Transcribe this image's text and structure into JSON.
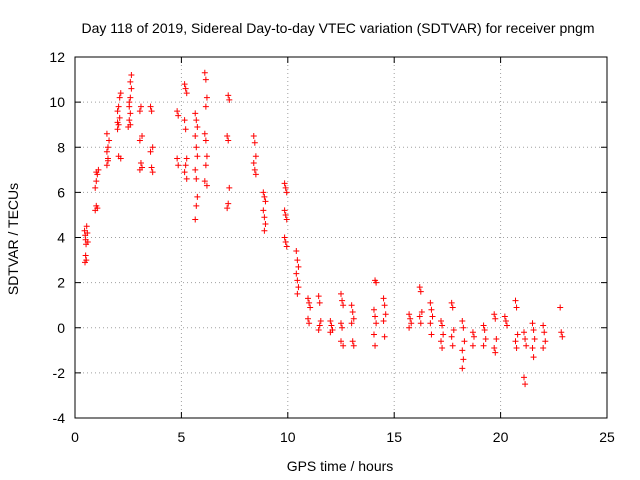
{
  "chart_data": {
    "type": "scatter",
    "title": "Day 118 of 2019, Sidereal Day-to-day VTEC variation (SDTVAR) for receiver pngm",
    "xlabel": "GPS time / hours",
    "ylabel": "SDTVAR / TECUs",
    "xlim": [
      0,
      25
    ],
    "ylim": [
      -4,
      12
    ],
    "xticks": [
      "0",
      "5",
      "10",
      "15",
      "20",
      "25"
    ],
    "yticks": [
      "-4",
      "-2",
      "0",
      "2",
      "4",
      "6",
      "8",
      "10",
      "12"
    ],
    "grid": true,
    "marker": "plus",
    "color": "#ff0000",
    "series": [
      {
        "name": "pngm",
        "points": [
          [
            0.45,
            4.3
          ],
          [
            0.48,
            4.1
          ],
          [
            0.5,
            3.9
          ],
          [
            0.52,
            3.7
          ],
          [
            0.5,
            3.2
          ],
          [
            0.47,
            2.9
          ],
          [
            0.55,
            4.5
          ],
          [
            0.58,
            4.2
          ],
          [
            0.6,
            3.8
          ],
          [
            0.53,
            3.0
          ],
          [
            0.95,
            5.2
          ],
          [
            1.0,
            5.4
          ],
          [
            1.05,
            5.3
          ],
          [
            0.95,
            6.2
          ],
          [
            1.0,
            6.5
          ],
          [
            1.05,
            6.8
          ],
          [
            1.1,
            7.0
          ],
          [
            1.0,
            6.9
          ],
          [
            1.5,
            7.2
          ],
          [
            1.55,
            7.5
          ],
          [
            1.5,
            7.8
          ],
          [
            1.55,
            8.0
          ],
          [
            1.6,
            8.3
          ],
          [
            1.5,
            8.6
          ],
          [
            1.55,
            7.4
          ],
          [
            2.0,
            8.8
          ],
          [
            2.05,
            9.0
          ],
          [
            2.1,
            9.3
          ],
          [
            2.0,
            9.6
          ],
          [
            2.05,
            9.8
          ],
          [
            2.1,
            10.2
          ],
          [
            2.15,
            10.4
          ],
          [
            2.0,
            9.1
          ],
          [
            2.05,
            7.6
          ],
          [
            2.15,
            7.5
          ],
          [
            2.5,
            8.9
          ],
          [
            2.55,
            9.2
          ],
          [
            2.6,
            9.5
          ],
          [
            2.55,
            9.8
          ],
          [
            2.6,
            10.2
          ],
          [
            2.65,
            10.6
          ],
          [
            2.6,
            10.9
          ],
          [
            2.65,
            11.2
          ],
          [
            2.55,
            10.0
          ],
          [
            2.6,
            9.0
          ],
          [
            3.05,
            9.6
          ],
          [
            3.1,
            9.8
          ],
          [
            3.15,
            8.5
          ],
          [
            3.05,
            8.3
          ],
          [
            3.1,
            7.3
          ],
          [
            3.15,
            7.1
          ],
          [
            3.05,
            7.0
          ],
          [
            3.55,
            9.8
          ],
          [
            3.6,
            9.6
          ],
          [
            3.65,
            8.0
          ],
          [
            3.55,
            7.8
          ],
          [
            3.6,
            7.1
          ],
          [
            3.65,
            6.9
          ],
          [
            4.8,
            9.6
          ],
          [
            4.85,
            9.4
          ],
          [
            4.8,
            7.5
          ],
          [
            4.85,
            7.2
          ],
          [
            5.15,
            10.8
          ],
          [
            5.2,
            10.6
          ],
          [
            5.25,
            10.4
          ],
          [
            5.15,
            9.2
          ],
          [
            5.2,
            8.8
          ],
          [
            5.25,
            7.5
          ],
          [
            5.2,
            7.2
          ],
          [
            5.15,
            6.9
          ],
          [
            5.25,
            6.6
          ],
          [
            5.65,
            9.5
          ],
          [
            5.7,
            9.2
          ],
          [
            5.75,
            8.9
          ],
          [
            5.65,
            8.5
          ],
          [
            5.7,
            8.0
          ],
          [
            5.75,
            7.6
          ],
          [
            5.65,
            7.0
          ],
          [
            5.7,
            6.6
          ],
          [
            5.75,
            5.8
          ],
          [
            5.7,
            5.4
          ],
          [
            5.65,
            4.8
          ],
          [
            6.1,
            11.3
          ],
          [
            6.15,
            11.0
          ],
          [
            6.2,
            10.2
          ],
          [
            6.15,
            9.8
          ],
          [
            6.1,
            8.6
          ],
          [
            6.15,
            8.3
          ],
          [
            6.2,
            7.6
          ],
          [
            6.15,
            7.2
          ],
          [
            6.1,
            6.5
          ],
          [
            6.2,
            6.3
          ],
          [
            7.2,
            10.3
          ],
          [
            7.25,
            10.1
          ],
          [
            7.15,
            8.5
          ],
          [
            7.2,
            8.3
          ],
          [
            7.25,
            6.2
          ],
          [
            7.2,
            5.5
          ],
          [
            7.15,
            5.3
          ],
          [
            8.4,
            8.5
          ],
          [
            8.45,
            8.2
          ],
          [
            8.5,
            7.6
          ],
          [
            8.4,
            7.3
          ],
          [
            8.45,
            7.0
          ],
          [
            8.5,
            6.8
          ],
          [
            8.85,
            6.0
          ],
          [
            8.9,
            5.8
          ],
          [
            8.95,
            5.6
          ],
          [
            8.85,
            5.2
          ],
          [
            8.9,
            4.9
          ],
          [
            8.95,
            4.6
          ],
          [
            8.9,
            4.3
          ],
          [
            9.85,
            6.4
          ],
          [
            9.9,
            6.2
          ],
          [
            9.95,
            6.0
          ],
          [
            9.85,
            5.2
          ],
          [
            9.9,
            5.0
          ],
          [
            9.95,
            4.8
          ],
          [
            9.85,
            4.0
          ],
          [
            9.9,
            3.8
          ],
          [
            9.95,
            3.6
          ],
          [
            10.4,
            3.4
          ],
          [
            10.45,
            3.0
          ],
          [
            10.5,
            2.7
          ],
          [
            10.4,
            2.4
          ],
          [
            10.45,
            2.1
          ],
          [
            10.5,
            1.8
          ],
          [
            10.45,
            1.5
          ],
          [
            10.95,
            1.3
          ],
          [
            11.0,
            1.1
          ],
          [
            11.05,
            0.9
          ],
          [
            10.95,
            0.4
          ],
          [
            11.0,
            0.2
          ],
          [
            11.45,
            1.4
          ],
          [
            11.5,
            1.1
          ],
          [
            11.55,
            0.3
          ],
          [
            11.5,
            0.1
          ],
          [
            11.45,
            -0.1
          ],
          [
            12.0,
            0.3
          ],
          [
            12.05,
            0.1
          ],
          [
            12.1,
            -0.1
          ],
          [
            12.0,
            -0.2
          ],
          [
            12.5,
            1.5
          ],
          [
            12.55,
            1.2
          ],
          [
            12.6,
            1.0
          ],
          [
            12.5,
            0.2
          ],
          [
            12.55,
            0.0
          ],
          [
            12.5,
            -0.6
          ],
          [
            12.6,
            -0.8
          ],
          [
            13.0,
            1.0
          ],
          [
            13.05,
            0.7
          ],
          [
            13.1,
            0.4
          ],
          [
            13.0,
            0.2
          ],
          [
            13.05,
            -0.6
          ],
          [
            13.1,
            -0.8
          ],
          [
            14.1,
            2.1
          ],
          [
            14.15,
            2.0
          ],
          [
            14.05,
            0.8
          ],
          [
            14.1,
            0.5
          ],
          [
            14.15,
            0.2
          ],
          [
            14.05,
            -0.3
          ],
          [
            14.1,
            -0.8
          ],
          [
            14.5,
            1.3
          ],
          [
            14.55,
            1.0
          ],
          [
            14.6,
            0.6
          ],
          [
            14.5,
            0.3
          ],
          [
            14.55,
            -0.4
          ],
          [
            15.7,
            0.6
          ],
          [
            15.75,
            0.4
          ],
          [
            15.8,
            0.2
          ],
          [
            15.7,
            0.0
          ],
          [
            16.2,
            1.8
          ],
          [
            16.25,
            1.6
          ],
          [
            16.3,
            0.7
          ],
          [
            16.2,
            0.5
          ],
          [
            16.25,
            0.2
          ],
          [
            16.7,
            1.1
          ],
          [
            16.75,
            0.8
          ],
          [
            16.8,
            0.5
          ],
          [
            16.7,
            0.2
          ],
          [
            16.75,
            -0.3
          ],
          [
            17.2,
            0.3
          ],
          [
            17.25,
            0.1
          ],
          [
            17.3,
            -0.3
          ],
          [
            17.2,
            -0.6
          ],
          [
            17.25,
            -0.9
          ],
          [
            17.7,
            1.1
          ],
          [
            17.75,
            0.9
          ],
          [
            17.8,
            -0.1
          ],
          [
            17.7,
            -0.4
          ],
          [
            17.75,
            -0.8
          ],
          [
            18.2,
            0.3
          ],
          [
            18.25,
            0.0
          ],
          [
            18.3,
            -0.6
          ],
          [
            18.2,
            -1.0
          ],
          [
            18.25,
            -1.4
          ],
          [
            18.2,
            -1.8
          ],
          [
            18.7,
            -0.2
          ],
          [
            18.75,
            -0.4
          ],
          [
            18.7,
            -0.8
          ],
          [
            19.2,
            0.1
          ],
          [
            19.25,
            -0.1
          ],
          [
            19.3,
            -0.5
          ],
          [
            19.2,
            -0.8
          ],
          [
            19.7,
            0.6
          ],
          [
            19.75,
            0.4
          ],
          [
            19.8,
            -0.5
          ],
          [
            19.7,
            -0.9
          ],
          [
            19.75,
            -1.1
          ],
          [
            20.2,
            0.5
          ],
          [
            20.25,
            0.3
          ],
          [
            20.3,
            0.1
          ],
          [
            20.7,
            1.2
          ],
          [
            20.75,
            0.9
          ],
          [
            20.8,
            -0.3
          ],
          [
            20.7,
            -0.6
          ],
          [
            20.75,
            -0.9
          ],
          [
            21.1,
            -0.2
          ],
          [
            21.15,
            -0.5
          ],
          [
            21.2,
            -0.8
          ],
          [
            21.1,
            -2.2
          ],
          [
            21.15,
            -2.5
          ],
          [
            21.5,
            0.2
          ],
          [
            21.55,
            -0.1
          ],
          [
            21.6,
            -0.5
          ],
          [
            21.5,
            -0.9
          ],
          [
            21.55,
            -1.3
          ],
          [
            22.0,
            0.1
          ],
          [
            22.05,
            -0.2
          ],
          [
            22.1,
            -0.6
          ],
          [
            22.0,
            -0.9
          ],
          [
            22.8,
            0.9
          ],
          [
            22.85,
            -0.2
          ],
          [
            22.9,
            -0.4
          ]
        ]
      }
    ]
  }
}
